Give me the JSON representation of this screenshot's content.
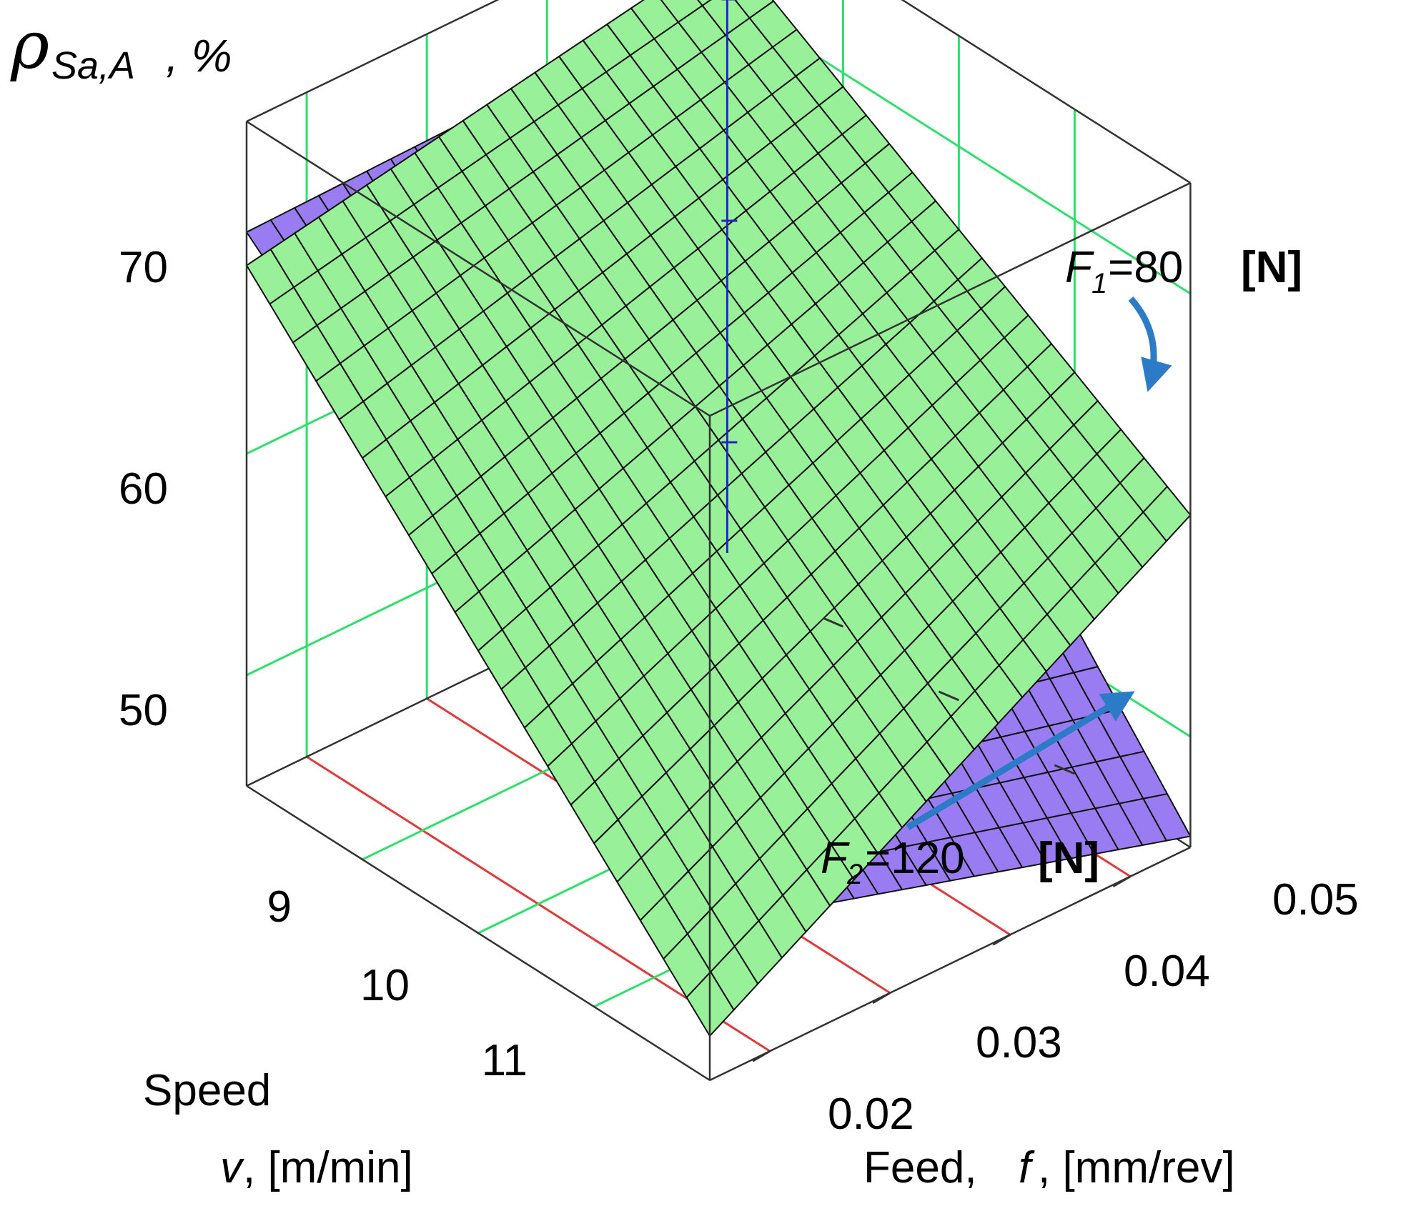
{
  "chart_data": {
    "type": "surface3d",
    "title": "",
    "zlabel": {
      "symbol": "ρ",
      "subscript": "Sa,A",
      "suffix": " , %"
    },
    "zaxis": {
      "ticks": [
        50,
        60,
        70
      ],
      "range": [
        45,
        75
      ]
    },
    "speed_axis": {
      "label_line1": "Speed",
      "label_line2_var": "v",
      "label_line2_rest": ", [m/min]",
      "ticks": [
        9,
        10,
        11
      ],
      "range": [
        8,
        12
      ]
    },
    "feed_axis": {
      "label_pre": "Feed, ",
      "label_var": "f",
      "label_post": ", [mm/rev]",
      "ticks": [
        "0.02",
        "0.03",
        "0.04",
        "0.05"
      ],
      "range": [
        0.015,
        0.055
      ]
    },
    "series": [
      {
        "name": "F1=80 [N]",
        "label_var": "F",
        "label_sub": "1",
        "label_eq": "=80 ",
        "label_unit": "[N]",
        "color": "#98f098",
        "corners": {
          "speed_min_feed_min": 68.5,
          "speed_min_feed_max": 72.5,
          "speed_max_feed_min": 47.0,
          "speed_max_feed_max": 60.0
        }
      },
      {
        "name": "F2=120 [N]",
        "label_var": "F",
        "label_sub": "2",
        "label_eq": "=120 ",
        "label_unit": "[N]",
        "color": "#9a7cf2",
        "corners": {
          "speed_min_feed_min": 70.0,
          "speed_min_feed_max": 70.5,
          "speed_max_feed_min": 52.0,
          "speed_max_feed_max": 45.5
        }
      }
    ],
    "colors": {
      "wall_grid": "#2de06a",
      "floor_grid": "#e03a3a",
      "z_axis": "#2424c8",
      "arrow": "#2b7bc6",
      "frame": "#333333"
    }
  }
}
